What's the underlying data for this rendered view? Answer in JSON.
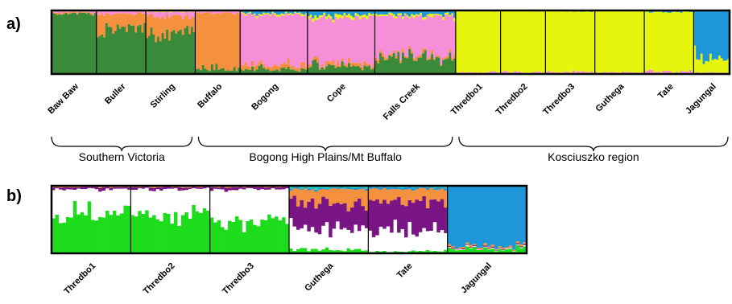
{
  "chart_data": [
    {
      "type": "stacked-bar",
      "panel_label": "a)",
      "clusters": [
        {
          "name": "",
          "color": "#3a8a3a"
        },
        {
          "name": "",
          "color": "#f5913e"
        },
        {
          "name": "",
          "color": "#f590d8"
        },
        {
          "name": "",
          "color": "#e6f50c"
        },
        {
          "name": "",
          "color": "#1e96d8"
        }
      ],
      "populations": [
        {
          "name": "Baw Baw",
          "n": 20,
          "props": [
            0.95,
            0.02,
            0.02,
            0.005,
            0.005
          ]
        },
        {
          "name": "Buller",
          "n": 22,
          "props": [
            0.72,
            0.23,
            0.04,
            0.005,
            0.005
          ]
        },
        {
          "name": "Stirling",
          "n": 22,
          "props": [
            0.66,
            0.25,
            0.07,
            0.01,
            0.01
          ]
        },
        {
          "name": "Buffalo",
          "n": 20,
          "props": [
            0.08,
            0.88,
            0.03,
            0.005,
            0.005
          ]
        },
        {
          "name": "Bogong",
          "n": 30,
          "props": [
            0.07,
            0.07,
            0.8,
            0.02,
            0.04
          ]
        },
        {
          "name": "Cope",
          "n": 30,
          "props": [
            0.12,
            0.05,
            0.72,
            0.04,
            0.07
          ]
        },
        {
          "name": "Falls Creek",
          "n": 36,
          "props": [
            0.25,
            0.04,
            0.62,
            0.03,
            0.06
          ]
        },
        {
          "name": "Thredbo1",
          "n": 20,
          "props": [
            0.005,
            0.005,
            0.02,
            0.96,
            0.01
          ]
        },
        {
          "name": "Thredbo2",
          "n": 20,
          "props": [
            0.005,
            0.005,
            0.02,
            0.96,
            0.01
          ]
        },
        {
          "name": "Thredbo3",
          "n": 22,
          "props": [
            0.005,
            0.005,
            0.02,
            0.96,
            0.01
          ]
        },
        {
          "name": "Guthega",
          "n": 22,
          "props": [
            0.005,
            0.005,
            0.02,
            0.96,
            0.01
          ]
        },
        {
          "name": "Tate",
          "n": 22,
          "props": [
            0.005,
            0.005,
            0.03,
            0.94,
            0.02
          ]
        },
        {
          "name": "Jagungal",
          "n": 16,
          "props": [
            0.005,
            0.005,
            0.01,
            0.26,
            0.72
          ]
        }
      ],
      "regions": [
        {
          "name": "Southern Victoria",
          "from": "Baw Baw",
          "to": "Stirling"
        },
        {
          "name": "Bogong High Plains/Mt Buffalo",
          "from": "Buffalo",
          "to": "Falls Creek"
        },
        {
          "name": "Kosciuszko region",
          "from": "Thredbo1",
          "to": "Jagungal"
        }
      ],
      "ylim": [
        0,
        1
      ]
    },
    {
      "type": "stacked-bar",
      "panel_label": "b)",
      "clusters": [
        {
          "name": "",
          "color": "#1cdc1c"
        },
        {
          "name": "",
          "color": "#ffffff"
        },
        {
          "name": "",
          "color": "#7a1585"
        },
        {
          "name": "",
          "color": "#f5913e"
        },
        {
          "name": "",
          "color": "#1e96d8"
        },
        {
          "name": "",
          "color": "#20d0c0"
        }
      ],
      "populations": [
        {
          "name": "Thredbo1",
          "n": 22,
          "props": [
            0.62,
            0.33,
            0.03,
            0.01,
            0.005,
            0.005
          ]
        },
        {
          "name": "Thredbo2",
          "n": 22,
          "props": [
            0.6,
            0.35,
            0.03,
            0.01,
            0.005,
            0.005
          ]
        },
        {
          "name": "Thredbo3",
          "n": 22,
          "props": [
            0.45,
            0.5,
            0.03,
            0.01,
            0.005,
            0.005
          ]
        },
        {
          "name": "Guthega",
          "n": 22,
          "props": [
            0.05,
            0.3,
            0.4,
            0.2,
            0.02,
            0.03
          ]
        },
        {
          "name": "Tate",
          "n": 22,
          "props": [
            0.03,
            0.3,
            0.45,
            0.17,
            0.03,
            0.02
          ]
        },
        {
          "name": "Jagungal",
          "n": 22,
          "props": [
            0.06,
            0.01,
            0.01,
            0.02,
            0.9,
            0.0
          ]
        }
      ],
      "ylim": [
        0,
        1
      ]
    }
  ]
}
